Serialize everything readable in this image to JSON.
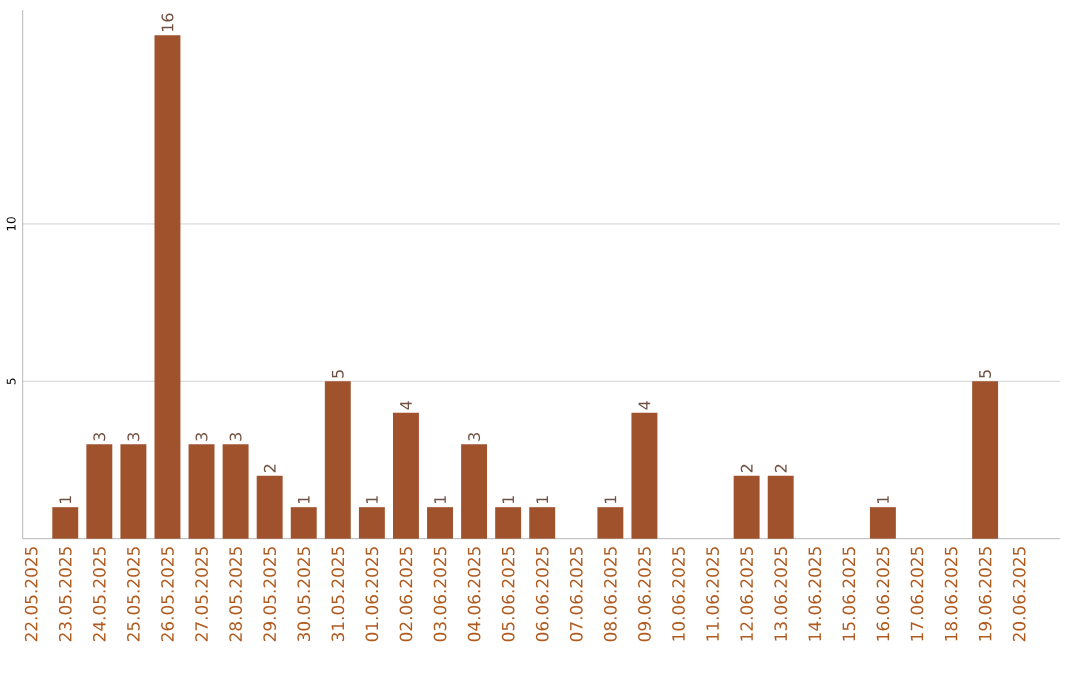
{
  "chart_data": {
    "type": "bar",
    "categories": [
      "22.05.2025",
      "23.05.2025",
      "24.05.2025",
      "25.05.2025",
      "26.05.2025",
      "27.05.2025",
      "28.05.2025",
      "29.05.2025",
      "30.05.2025",
      "31.05.2025",
      "01.06.2025",
      "02.06.2025",
      "03.06.2025",
      "04.06.2025",
      "05.06.2025",
      "06.06.2025",
      "07.06.2025",
      "08.06.2025",
      "09.06.2025",
      "10.06.2025",
      "11.06.2025",
      "12.06.2025",
      "13.06.2025",
      "14.06.2025",
      "15.06.2025",
      "16.06.2025",
      "17.06.2025",
      "18.06.2025",
      "19.06.2025",
      "20.06.2025"
    ],
    "values": [
      0,
      1,
      3,
      3,
      16,
      3,
      3,
      2,
      1,
      5,
      1,
      4,
      1,
      3,
      1,
      1,
      0,
      1,
      4,
      0,
      0,
      2,
      2,
      0,
      0,
      1,
      0,
      0,
      5,
      0
    ],
    "value_labels": [
      null,
      "1",
      "3",
      "3",
      "16",
      "3",
      "3",
      "2",
      "1",
      "5",
      "1",
      "4",
      "1",
      "3",
      "1",
      "1",
      null,
      "1",
      "4",
      null,
      null,
      "2",
      "2",
      null,
      null,
      "1",
      null,
      null,
      "5",
      null
    ],
    "color": "#a0522d",
    "ylim": [
      0,
      16.8
    ],
    "yticks": [
      5,
      10
    ],
    "grid": "y"
  }
}
